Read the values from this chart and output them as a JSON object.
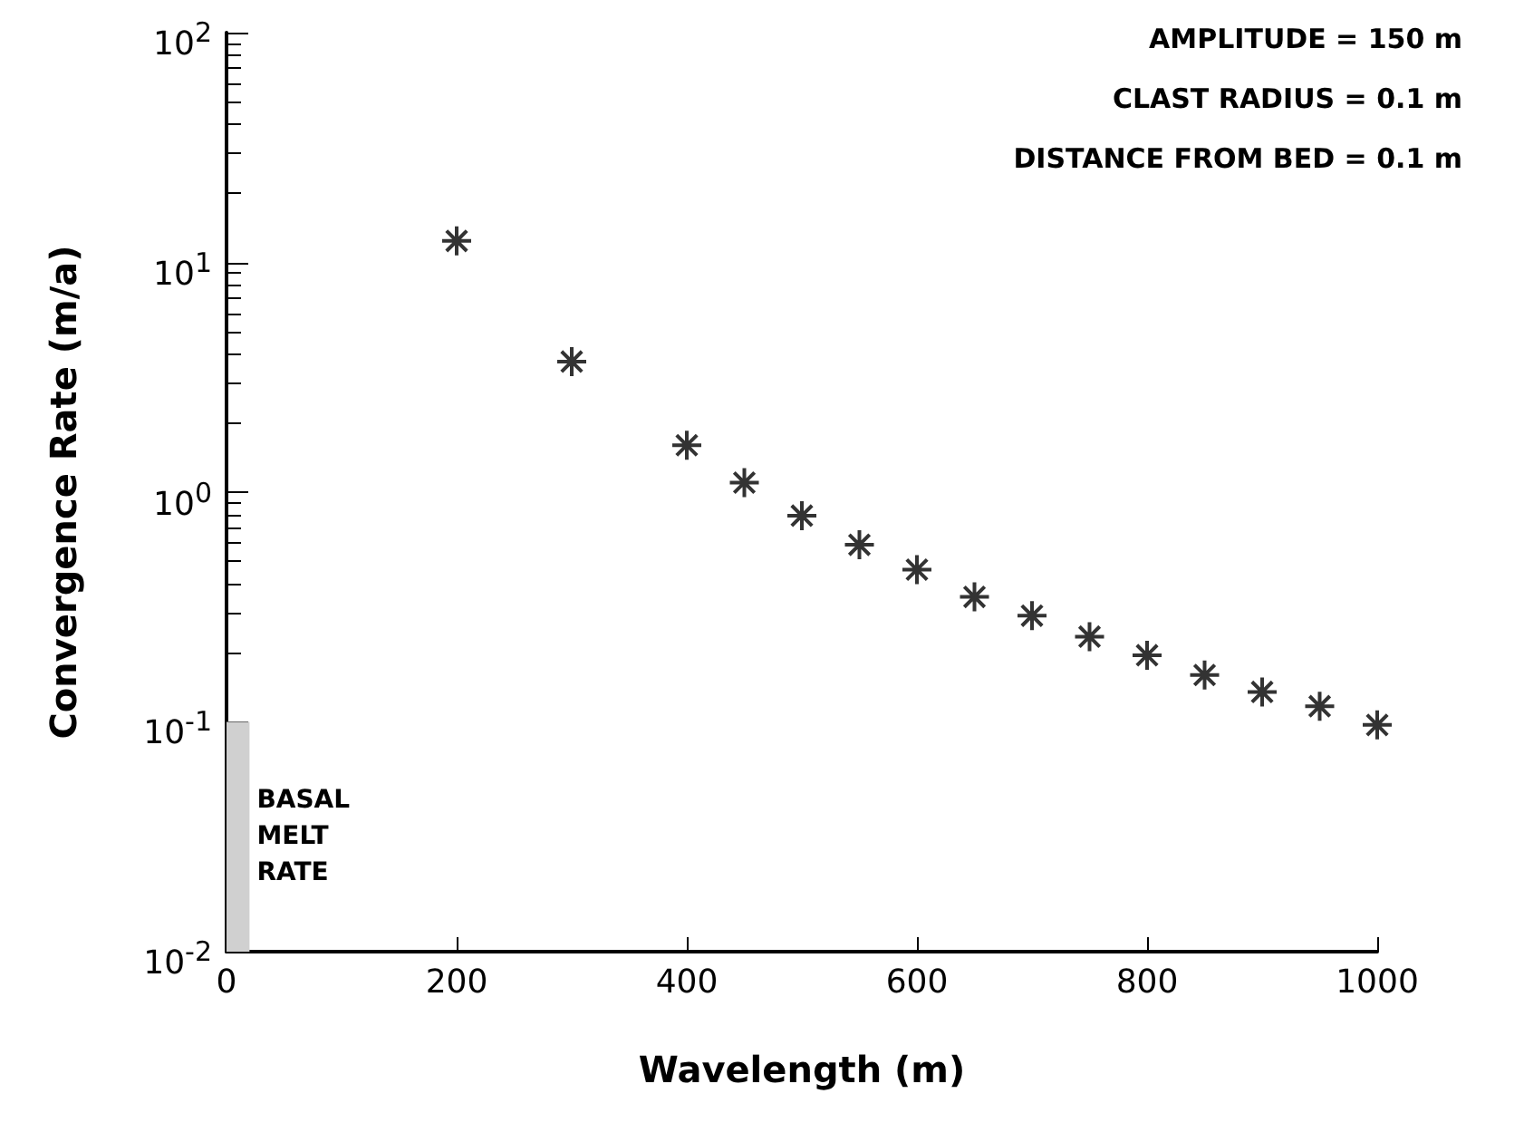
{
  "chart_data": {
    "type": "scatter",
    "xlabel": "Wavelength (m)",
    "ylabel": "Convergence Rate (m/a)",
    "x": [
      200,
      300,
      400,
      450,
      500,
      550,
      600,
      650,
      700,
      750,
      800,
      850,
      900,
      950,
      1000
    ],
    "series": [
      {
        "color": "#000000",
        "values": [
          12.4,
          3.7,
          1.6,
          1.1,
          0.79,
          0.59,
          0.46,
          0.35,
          0.29,
          0.235,
          0.195,
          0.16,
          0.135,
          0.117,
          0.097
        ]
      },
      {
        "type": "area",
        "marker": "none",
        "name": "BASAL MELT RATE",
        "color": "#d0d0d0",
        "x": [
          0,
          20
        ],
        "values": [
          0.1,
          0.1
        ]
      }
    ],
    "marker": "cross",
    "log": "y",
    "grid": false,
    "xlim": [
      0,
      1000
    ],
    "xticks": [
      0,
      200,
      400,
      600,
      800,
      1000
    ],
    "ylim": [
      0.01,
      100
    ],
    "yticks": [
      {
        "value": 0.01,
        "label": "10$^{-2}$"
      },
      {
        "value": 0.1,
        "label": "10$^{-1}$"
      },
      {
        "value": 1,
        "label": "10$^{0}$"
      },
      {
        "value": 10,
        "label": "10$^{1}$"
      },
      {
        "value": 100,
        "label": "10$^{2}$"
      }
    ],
    "annotations": [
      "AMPLITUDE = 150 m",
      "CLAST RADIUS = 0.1 m",
      "DISTANCE FROM BED = 0.1 m"
    ]
  }
}
